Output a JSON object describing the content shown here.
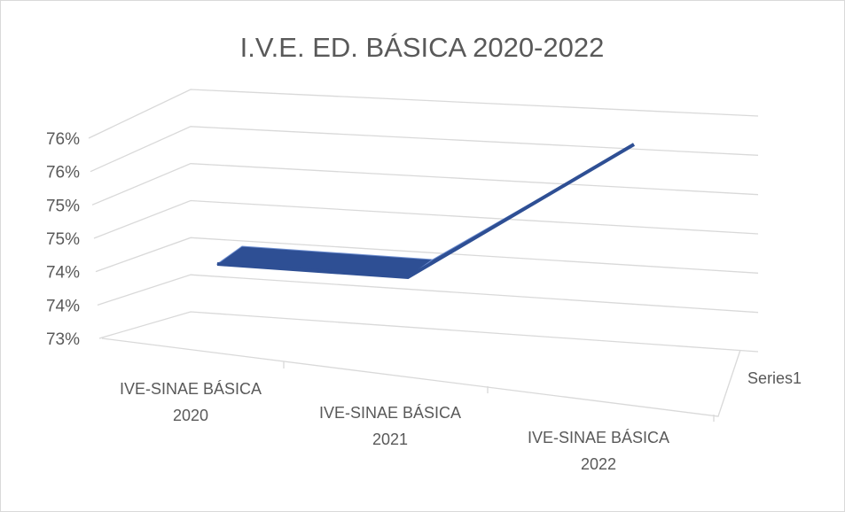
{
  "chart_data": {
    "type": "line",
    "title": "I.V.E. ED. BÁSICA 2020-2022",
    "categories": [
      "IVE-SINAE BÁSICA 2020",
      "IVE-SINAE BÁSICA 2021",
      "IVE-SINAE BÁSICA 2022"
    ],
    "series": [
      {
        "name": "Series1",
        "color": "#2e4f94",
        "values": [
          74.2,
          74.0,
          76.0
        ]
      }
    ],
    "ylim": [
      73,
      76
    ],
    "yticks": [
      {
        "value": 73,
        "label": "73%"
      },
      {
        "value": 73.5,
        "label": "74%"
      },
      {
        "value": 74,
        "label": "74%"
      },
      {
        "value": 74.5,
        "label": "75%"
      },
      {
        "value": 75,
        "label": "75%"
      },
      {
        "value": 75.5,
        "label": "76%"
      },
      {
        "value": 76,
        "label": "76%"
      }
    ],
    "grid": true,
    "view": "3d"
  }
}
